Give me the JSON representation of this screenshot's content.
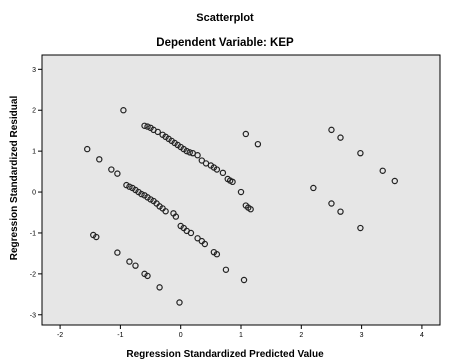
{
  "chart_data": {
    "type": "scatter",
    "title": "Scatterplot",
    "subtitle": "Dependent Variable: KEP",
    "xlabel": "Regression Standardized Predicted Value",
    "ylabel": "Regression Standardized Residual",
    "xlim": [
      -2.3,
      4.3
    ],
    "ylim": [
      -3.25,
      3.35
    ],
    "x_ticks": [
      "-2",
      "-1",
      "0",
      "1",
      "2",
      "3",
      "4"
    ],
    "y_ticks": [
      "3",
      "2",
      "1",
      "0",
      "-1",
      "-2",
      "-3"
    ],
    "grid": false,
    "background": "#e6e6e6",
    "marker": "hollow circle",
    "points": [
      {
        "x": -0.95,
        "y": 2.0
      },
      {
        "x": -0.6,
        "y": 1.62
      },
      {
        "x": -0.55,
        "y": 1.6
      },
      {
        "x": -0.5,
        "y": 1.57
      },
      {
        "x": -0.45,
        "y": 1.52
      },
      {
        "x": -0.38,
        "y": 1.47
      },
      {
        "x": -0.3,
        "y": 1.4
      },
      {
        "x": -0.25,
        "y": 1.35
      },
      {
        "x": -0.2,
        "y": 1.3
      },
      {
        "x": -0.15,
        "y": 1.25
      },
      {
        "x": -0.1,
        "y": 1.2
      },
      {
        "x": -0.05,
        "y": 1.15
      },
      {
        "x": 0.0,
        "y": 1.1
      },
      {
        "x": 0.05,
        "y": 1.05
      },
      {
        "x": 0.1,
        "y": 1.0
      },
      {
        "x": 0.15,
        "y": 0.97
      },
      {
        "x": 0.2,
        "y": 0.95
      },
      {
        "x": 0.28,
        "y": 0.9
      },
      {
        "x": 0.35,
        "y": 0.77
      },
      {
        "x": 0.42,
        "y": 0.7
      },
      {
        "x": 0.5,
        "y": 0.65
      },
      {
        "x": 0.55,
        "y": 0.6
      },
      {
        "x": 0.6,
        "y": 0.55
      },
      {
        "x": 0.7,
        "y": 0.47
      },
      {
        "x": 0.78,
        "y": 0.32
      },
      {
        "x": 0.82,
        "y": 0.28
      },
      {
        "x": 0.86,
        "y": 0.25
      },
      {
        "x": 1.0,
        "y": 0.0
      },
      {
        "x": 1.08,
        "y": 1.42
      },
      {
        "x": 1.28,
        "y": 1.17
      },
      {
        "x": 1.08,
        "y": -0.33
      },
      {
        "x": 1.12,
        "y": -0.38
      },
      {
        "x": 1.16,
        "y": -0.42
      },
      {
        "x": -1.55,
        "y": 1.05
      },
      {
        "x": -1.35,
        "y": 0.8
      },
      {
        "x": -1.15,
        "y": 0.55
      },
      {
        "x": -1.05,
        "y": 0.45
      },
      {
        "x": -0.9,
        "y": 0.17
      },
      {
        "x": -0.85,
        "y": 0.13
      },
      {
        "x": -0.8,
        "y": 0.1
      },
      {
        "x": -0.75,
        "y": 0.05
      },
      {
        "x": -0.7,
        "y": 0.0
      },
      {
        "x": -0.65,
        "y": -0.05
      },
      {
        "x": -0.6,
        "y": -0.08
      },
      {
        "x": -0.55,
        "y": -0.13
      },
      {
        "x": -0.5,
        "y": -0.18
      },
      {
        "x": -0.45,
        "y": -0.22
      },
      {
        "x": -0.4,
        "y": -0.28
      },
      {
        "x": -0.35,
        "y": -0.35
      },
      {
        "x": -0.3,
        "y": -0.4
      },
      {
        "x": -0.25,
        "y": -0.47
      },
      {
        "x": -0.12,
        "y": -0.52
      },
      {
        "x": -0.08,
        "y": -0.6
      },
      {
        "x": 0.0,
        "y": -0.83
      },
      {
        "x": 0.05,
        "y": -0.88
      },
      {
        "x": 0.1,
        "y": -0.95
      },
      {
        "x": 0.17,
        "y": -1.0
      },
      {
        "x": 0.28,
        "y": -1.13
      },
      {
        "x": 0.35,
        "y": -1.2
      },
      {
        "x": 0.4,
        "y": -1.27
      },
      {
        "x": 0.55,
        "y": -1.47
      },
      {
        "x": 0.6,
        "y": -1.52
      },
      {
        "x": 0.75,
        "y": -1.9
      },
      {
        "x": 1.05,
        "y": -2.15
      },
      {
        "x": -1.45,
        "y": -1.05
      },
      {
        "x": -1.4,
        "y": -1.1
      },
      {
        "x": -1.05,
        "y": -1.48
      },
      {
        "x": -0.85,
        "y": -1.7
      },
      {
        "x": -0.75,
        "y": -1.8
      },
      {
        "x": -0.6,
        "y": -2.0
      },
      {
        "x": -0.55,
        "y": -2.05
      },
      {
        "x": -0.35,
        "y": -2.33
      },
      {
        "x": -0.02,
        "y": -2.7
      },
      {
        "x": 2.2,
        "y": 0.1
      },
      {
        "x": 2.5,
        "y": 1.52
      },
      {
        "x": 2.65,
        "y": 1.33
      },
      {
        "x": 2.5,
        "y": -0.28
      },
      {
        "x": 2.65,
        "y": -0.48
      },
      {
        "x": 2.98,
        "y": 0.95
      },
      {
        "x": 2.98,
        "y": -0.88
      },
      {
        "x": 3.35,
        "y": 0.52
      },
      {
        "x": 3.55,
        "y": 0.27
      }
    ]
  }
}
